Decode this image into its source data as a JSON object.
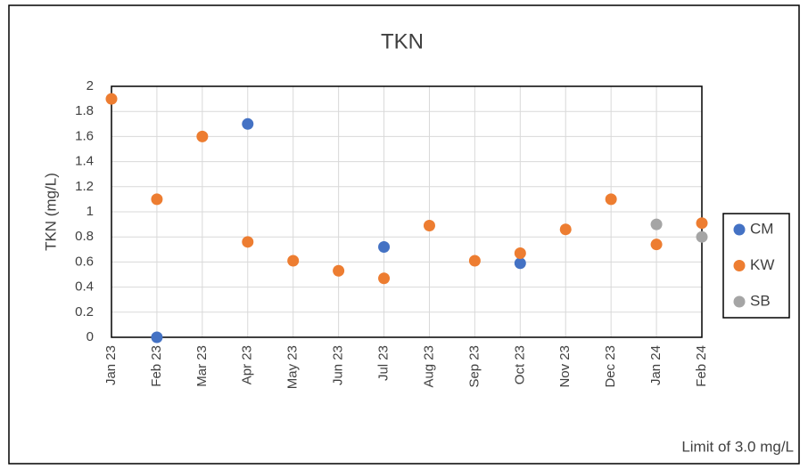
{
  "chart_data": {
    "type": "scatter",
    "title": "TKN",
    "y_label": "TKN (mg/L)",
    "annotation": "Limit of 3.0 mg/L",
    "categories": [
      "Jan 23",
      "Feb 23",
      "Mar 23",
      "Apr 23",
      "May 23",
      "Jun 23",
      "Jul 23",
      "Aug 23",
      "Sep 23",
      "Oct 23",
      "Nov 23",
      "Dec 23",
      "Jan 24",
      "Feb 24"
    ],
    "series": [
      {
        "name": "CM",
        "color": "#4472c4",
        "values": [
          null,
          0,
          null,
          1.7,
          null,
          null,
          0.72,
          null,
          null,
          0.59,
          null,
          null,
          null,
          null
        ]
      },
      {
        "name": "KW",
        "color": "#ed7d31",
        "values": [
          1.9,
          1.1,
          1.6,
          0.76,
          0.61,
          0.53,
          0.47,
          0.89,
          0.61,
          0.67,
          0.86,
          1.1,
          0.74,
          0.91
        ]
      },
      {
        "name": "SB",
        "color": "#a5a5a5",
        "values": [
          null,
          null,
          null,
          null,
          null,
          null,
          null,
          null,
          null,
          null,
          null,
          null,
          0.9,
          0.8
        ]
      }
    ],
    "ylim": [
      0,
      2
    ],
    "yticks": [
      0,
      0.2,
      0.4,
      0.6,
      0.8,
      1,
      1.2,
      1.4,
      1.6,
      1.8,
      2
    ],
    "grid": true,
    "legend": "right"
  }
}
